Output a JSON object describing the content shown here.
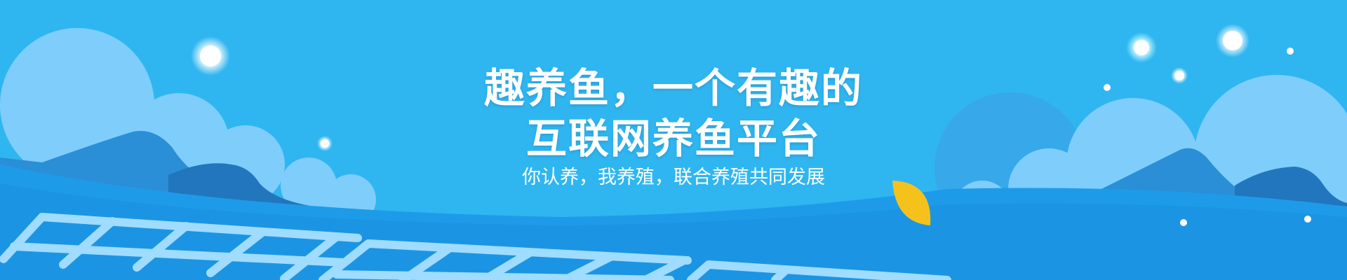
{
  "banner": {
    "headline_line1": "趣养鱼，一个有趣的",
    "headline_line2": "互联网养鱼平台",
    "subline": "你认养，我养殖，联合养殖共同发展"
  },
  "colors": {
    "sky": "#2fb6f0",
    "cloud_light": "#7fcdfb",
    "hill_mid": "#2a8fd6",
    "water": "#1e9be8",
    "net": "#9fdcff",
    "leaf": "#f5c21b",
    "text": "#ffffff"
  },
  "icons": [
    "cloud-icon",
    "mountain-icon",
    "fishing-net-icon",
    "leaf-icon",
    "star-icon"
  ]
}
